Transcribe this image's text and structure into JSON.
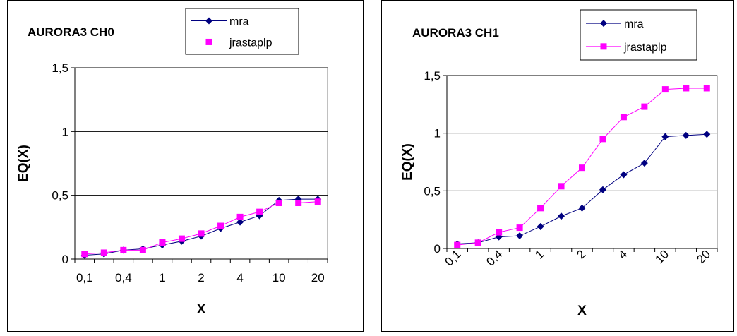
{
  "chart_data": [
    {
      "type": "line",
      "title": "AURORA3 CH0",
      "xlabel": "X",
      "ylabel": "EQ(X)",
      "x_tick_labels": [
        "0,1",
        "0,4",
        "1",
        "2",
        "4",
        "10",
        "20"
      ],
      "y_tick_labels": [
        "0",
        "0,5",
        "1",
        "1,5"
      ],
      "ylim": [
        0,
        1.5
      ],
      "grid": "horizontal",
      "legend": "top-right",
      "series": [
        {
          "name": "mra",
          "color": "#000080",
          "marker": "diamond",
          "values": [
            0.03,
            0.04,
            0.07,
            0.08,
            0.11,
            0.14,
            0.18,
            0.24,
            0.29,
            0.34,
            0.46,
            0.47,
            0.47
          ]
        },
        {
          "name": "jrastaplp",
          "color": "#ff00ff",
          "marker": "square",
          "values": [
            0.04,
            0.05,
            0.07,
            0.07,
            0.13,
            0.16,
            0.2,
            0.26,
            0.33,
            0.37,
            0.44,
            0.44,
            0.45
          ]
        }
      ]
    },
    {
      "type": "line",
      "title": "AURORA3 CH1",
      "xlabel": "X",
      "ylabel": "EQ(X)",
      "x_tick_labels": [
        "0,1",
        "0,4",
        "1",
        "2",
        "4",
        "10",
        "20"
      ],
      "y_tick_labels": [
        "0",
        "0,5",
        "1",
        "1,5"
      ],
      "ylim": [
        0,
        1.5
      ],
      "grid": "horizontal",
      "legend": "top-right",
      "series": [
        {
          "name": "mra",
          "color": "#000080",
          "marker": "diamond",
          "values": [
            0.04,
            0.05,
            0.1,
            0.11,
            0.19,
            0.28,
            0.35,
            0.51,
            0.64,
            0.74,
            0.97,
            0.98,
            0.99
          ]
        },
        {
          "name": "jrastaplp",
          "color": "#ff00ff",
          "marker": "square",
          "values": [
            0.03,
            0.05,
            0.14,
            0.18,
            0.35,
            0.54,
            0.7,
            0.95,
            1.14,
            1.23,
            1.38,
            1.39,
            1.39
          ]
        }
      ]
    }
  ]
}
